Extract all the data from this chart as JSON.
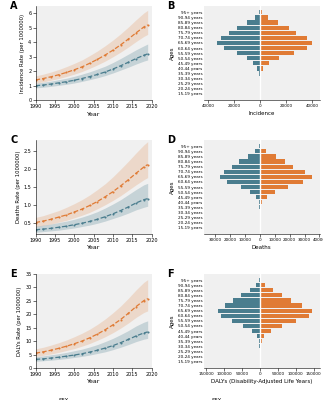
{
  "age_groups": [
    "95+ years",
    "90-94 years",
    "85-89 years",
    "80-84 years",
    "75-79 years",
    "70-74 years",
    "65-69 years",
    "60-64 years",
    "55-59 years",
    "50-54 years",
    "45-49 years",
    "40-44 years",
    "35-39 years",
    "30-34 years",
    "25-29 years",
    "20-24 years",
    "15-19 years"
  ],
  "incidence_female": [
    800,
    4000,
    10000,
    18000,
    24000,
    30000,
    33000,
    28000,
    18000,
    10000,
    5000,
    2000,
    700,
    300,
    150,
    80,
    40
  ],
  "incidence_male": [
    1200,
    6000,
    14000,
    22000,
    28000,
    36000,
    40000,
    36000,
    26000,
    15000,
    7000,
    2500,
    900,
    400,
    200,
    100,
    50
  ],
  "deaths_female": [
    600,
    3000,
    8000,
    14000,
    19000,
    24000,
    27000,
    22000,
    13000,
    6500,
    2800,
    900,
    350,
    120,
    60,
    25,
    8
  ],
  "deaths_male": [
    900,
    4200,
    10500,
    17000,
    22000,
    30000,
    35000,
    29000,
    19000,
    10000,
    4500,
    1500,
    550,
    180,
    80,
    35,
    15
  ],
  "dalys_female": [
    2000,
    10000,
    28000,
    52000,
    74000,
    96000,
    118000,
    108000,
    78000,
    46000,
    22000,
    8500,
    3200,
    1500,
    750,
    350,
    150
  ],
  "dalys_male": [
    3000,
    14000,
    36000,
    62000,
    86000,
    116000,
    145000,
    136000,
    100000,
    62000,
    32000,
    12000,
    4800,
    2200,
    1100,
    550,
    220
  ],
  "years": [
    1990,
    1992,
    1994,
    1996,
    1998,
    2000,
    2002,
    2004,
    2006,
    2008,
    2010,
    2012,
    2014,
    2016,
    2018,
    2019
  ],
  "inc_female_mean": [
    1.0,
    1.05,
    1.12,
    1.2,
    1.28,
    1.38,
    1.5,
    1.63,
    1.78,
    1.95,
    2.15,
    2.38,
    2.62,
    2.88,
    3.1,
    3.2
  ],
  "inc_female_lo": [
    0.85,
    0.9,
    0.96,
    1.03,
    1.1,
    1.19,
    1.3,
    1.42,
    1.55,
    1.7,
    1.88,
    2.08,
    2.28,
    2.5,
    2.7,
    2.78
  ],
  "inc_female_hi": [
    1.18,
    1.24,
    1.32,
    1.42,
    1.52,
    1.65,
    1.8,
    1.96,
    2.15,
    2.35,
    2.6,
    2.88,
    3.18,
    3.48,
    3.75,
    3.88
  ],
  "inc_male_mean": [
    1.4,
    1.5,
    1.62,
    1.76,
    1.92,
    2.1,
    2.3,
    2.55,
    2.82,
    3.12,
    3.45,
    3.82,
    4.22,
    4.65,
    5.05,
    5.2
  ],
  "inc_male_lo": [
    1.18,
    1.27,
    1.38,
    1.5,
    1.64,
    1.8,
    1.98,
    2.2,
    2.44,
    2.7,
    3.0,
    3.32,
    3.67,
    4.05,
    4.4,
    4.54
  ],
  "inc_male_hi": [
    1.68,
    1.8,
    1.95,
    2.12,
    2.32,
    2.54,
    2.78,
    3.08,
    3.4,
    3.76,
    4.15,
    4.58,
    5.05,
    5.55,
    6.02,
    6.2
  ],
  "death_female_mean": [
    0.32,
    0.34,
    0.36,
    0.39,
    0.42,
    0.46,
    0.5,
    0.55,
    0.61,
    0.68,
    0.76,
    0.85,
    0.95,
    1.06,
    1.15,
    1.18
  ],
  "death_female_lo": [
    0.25,
    0.27,
    0.29,
    0.31,
    0.34,
    0.37,
    0.41,
    0.45,
    0.5,
    0.56,
    0.63,
    0.7,
    0.78,
    0.87,
    0.94,
    0.97
  ],
  "death_female_hi": [
    0.42,
    0.45,
    0.48,
    0.52,
    0.56,
    0.61,
    0.67,
    0.74,
    0.82,
    0.92,
    1.03,
    1.15,
    1.29,
    1.43,
    1.56,
    1.6
  ],
  "death_male_mean": [
    0.52,
    0.56,
    0.61,
    0.67,
    0.73,
    0.81,
    0.89,
    0.99,
    1.1,
    1.23,
    1.37,
    1.53,
    1.7,
    1.88,
    2.05,
    2.12
  ],
  "death_male_lo": [
    0.41,
    0.44,
    0.48,
    0.53,
    0.58,
    0.65,
    0.72,
    0.8,
    0.9,
    1.01,
    1.13,
    1.26,
    1.41,
    1.56,
    1.7,
    1.76
  ],
  "death_male_hi": [
    0.66,
    0.71,
    0.78,
    0.85,
    0.94,
    1.04,
    1.15,
    1.28,
    1.43,
    1.59,
    1.78,
    1.99,
    2.21,
    2.44,
    2.66,
    2.75
  ],
  "daly_female_mean": [
    3.2,
    3.4,
    3.7,
    4.0,
    4.4,
    4.8,
    5.3,
    5.9,
    6.6,
    7.4,
    8.3,
    9.4,
    10.6,
    11.9,
    13.0,
    13.4
  ],
  "daly_female_lo": [
    2.5,
    2.7,
    2.9,
    3.2,
    3.5,
    3.9,
    4.3,
    4.8,
    5.4,
    6.0,
    6.8,
    7.7,
    8.7,
    9.8,
    10.7,
    11.0
  ],
  "daly_female_hi": [
    4.2,
    4.5,
    4.9,
    5.3,
    5.8,
    6.4,
    7.0,
    7.8,
    8.7,
    9.8,
    11.0,
    12.4,
    13.9,
    15.6,
    17.0,
    17.5
  ],
  "daly_male_mean": [
    5.5,
    6.0,
    6.6,
    7.3,
    8.1,
    9.0,
    10.0,
    11.2,
    12.6,
    14.2,
    16.0,
    18.0,
    20.3,
    22.8,
    25.0,
    25.8
  ],
  "daly_male_lo": [
    4.3,
    4.7,
    5.2,
    5.8,
    6.5,
    7.2,
    8.1,
    9.1,
    10.3,
    11.6,
    13.1,
    14.8,
    16.7,
    18.8,
    20.6,
    21.2
  ],
  "daly_male_hi": [
    7.1,
    7.7,
    8.5,
    9.4,
    10.4,
    11.6,
    12.9,
    14.4,
    16.2,
    18.2,
    20.5,
    23.0,
    25.9,
    29.0,
    31.8,
    32.8
  ],
  "female_color": "#4a7d8e",
  "male_color": "#e07b35",
  "bg_color": "#f0f0f0"
}
